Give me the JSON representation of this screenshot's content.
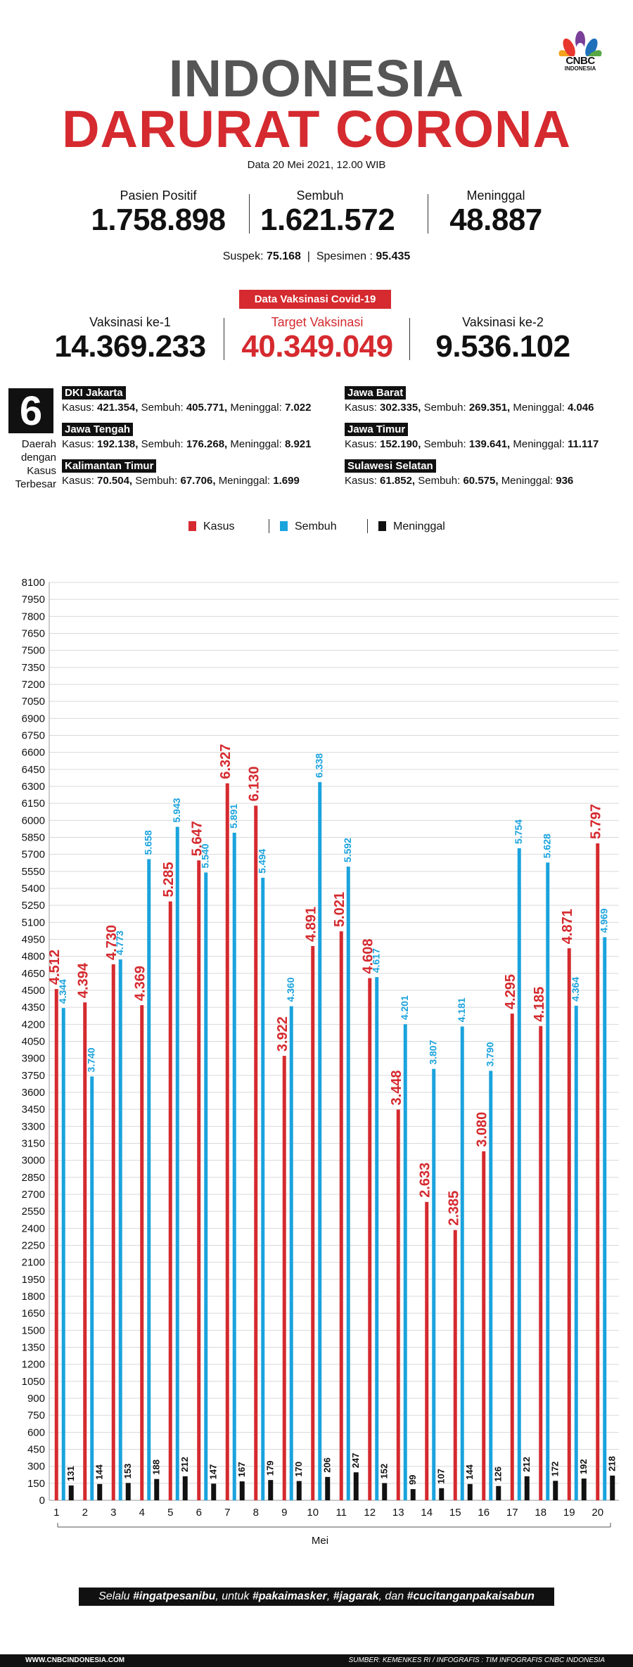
{
  "brand": {
    "name": "CNBC",
    "sub": "INDONESIA"
  },
  "title": {
    "line1": "INDONESIA",
    "line2": "DARURAT CORONA"
  },
  "date": "Data 20 Mei 2021, 12.00 WIB",
  "stats": [
    {
      "label": "Pasien Positif",
      "value": "1.758.898"
    },
    {
      "label": "Sembuh",
      "value": "1.621.572"
    },
    {
      "label": "Meninggal",
      "value": "48.887"
    }
  ],
  "suspek": {
    "label": "Suspek:",
    "value": "75.168",
    "spes_label": "Spesimen :",
    "spes_value": "95.435"
  },
  "vaccine": {
    "badge": "Data Vaksinasi Covid-19",
    "items": [
      {
        "label": "Vaksinasi ke-1",
        "value": "14.369.233"
      },
      {
        "label": "Target Vaksinasi",
        "value": "40.349.049"
      },
      {
        "label": "Vaksinasi ke-2",
        "value": "9.536.102"
      }
    ]
  },
  "regions_box": {
    "number": "6",
    "caption": [
      "Daerah",
      "dengan",
      "Kasus",
      "Terbesar"
    ]
  },
  "regions": [
    {
      "name": "DKI Jakarta",
      "kasus": "421.354,",
      "sembuh": "405.771,",
      "meninggal": "7.022"
    },
    {
      "name": "Jawa Barat",
      "kasus": "302.335,",
      "sembuh": "269.351,",
      "meninggal": "4.046"
    },
    {
      "name": "Jawa Tengah",
      "kasus": "192.138,",
      "sembuh": "176.268,",
      "meninggal": "8.921"
    },
    {
      "name": "Jawa Timur",
      "kasus": "152.190,",
      "sembuh": "139.641,",
      "meninggal": "11.117"
    },
    {
      "name": "Kalimantan Timur",
      "kasus": "70.504,",
      "sembuh": "67.706,",
      "meninggal": "1.699"
    },
    {
      "name": "Sulawesi Selatan",
      "kasus": "61.852,",
      "sembuh": "60.575,",
      "meninggal": "936"
    }
  ],
  "labels": {
    "kasus": "Kasus:",
    "sembuh": "Sembuh:",
    "meninggal": "Meninggal:"
  },
  "colors": {
    "kasus": "#d52a2f",
    "sembuh": "#1aa3dd",
    "meninggal": "#111111"
  },
  "chart_data": {
    "type": "bar",
    "xlabel": "Mei",
    "ylabel": "",
    "ylim": [
      0,
      8100
    ],
    "yticks_step": 150,
    "categories": [
      "1",
      "2",
      "3",
      "4",
      "5",
      "6",
      "7",
      "8",
      "9",
      "10",
      "11",
      "12",
      "13",
      "14",
      "15",
      "16",
      "17",
      "18",
      "19",
      "20"
    ],
    "series": [
      {
        "name": "Kasus",
        "values": [
          4512,
          4394,
          4730,
          4369,
          5285,
          5647,
          6327,
          6130,
          3922,
          4891,
          5021,
          4608,
          3448,
          2633,
          2385,
          3080,
          4295,
          4185,
          4871,
          5797
        ],
        "labels": [
          "4.512",
          "4.394",
          "4.730",
          "4.369",
          "5.285",
          "5.647",
          "6.327",
          "6.130",
          "3.922",
          "4.891",
          "5.021",
          "4.608",
          "3.448",
          "2.633",
          "2.385",
          "3.080",
          "4.295",
          "4.185",
          "4.871",
          "5.797"
        ]
      },
      {
        "name": "Sembuh",
        "values": [
          4344,
          3740,
          4773,
          5658,
          5943,
          5540,
          5891,
          5494,
          4360,
          6338,
          5592,
          4617,
          4201,
          3807,
          4181,
          3790,
          5754,
          5628,
          4364,
          4969
        ],
        "labels": [
          "4.344",
          "3.740",
          "4.773",
          "5.658",
          "5.943",
          "5.540",
          "5.891",
          "5.494",
          "4.360",
          "6.338",
          "5.592",
          "4.617",
          "4.201",
          "3.807",
          "4.181",
          "3.790",
          "5.754",
          "5.628",
          "4.364",
          "4.969"
        ]
      },
      {
        "name": "Meninggal",
        "values": [
          131,
          144,
          153,
          188,
          212,
          147,
          167,
          179,
          170,
          206,
          247,
          152,
          99,
          107,
          144,
          126,
          212,
          172,
          192,
          218
        ],
        "labels": [
          "131",
          "144",
          "153",
          "188",
          "212",
          "147",
          "167",
          "179",
          "170",
          "206",
          "247",
          "152",
          "99",
          "107",
          "144",
          "126",
          "212",
          "172",
          "192",
          "218"
        ]
      }
    ]
  },
  "slogan": {
    "pre": "Selalu ",
    "t1": "#ingatpesanibu",
    "mid1": ", untuk ",
    "t2": "#pakaimasker",
    "mid2": ", ",
    "t3": "#jagarak",
    "mid3": ", dan ",
    "t4": "#cucitanganpakaisabun"
  },
  "footer": {
    "left": "WWW.CNBCINDONESIA.COM",
    "right": "SUMBER: KEMENKES RI / INFOGRAFIS : TIM INFOGRAFIS CNBC INDONESIA"
  }
}
